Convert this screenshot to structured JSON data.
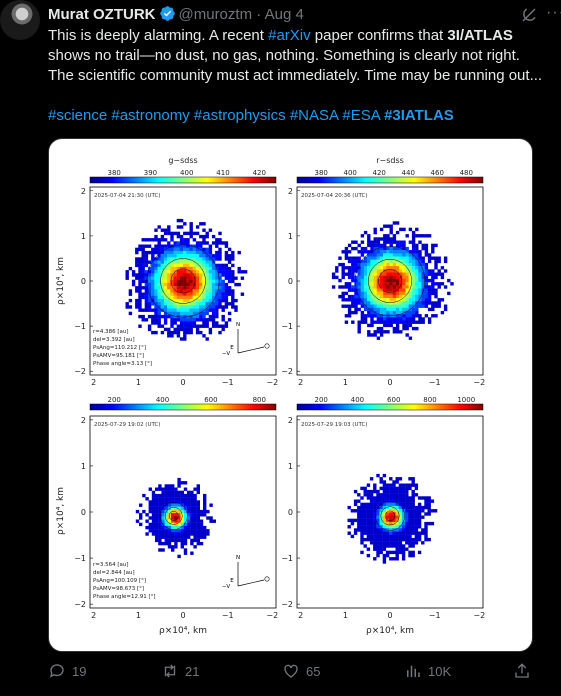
{
  "author": {
    "name": "Murat OZTURK",
    "handle": "@muroztm",
    "separator": "·",
    "date": "Aug 4"
  },
  "tweet": {
    "line1_pre": "This is deeply alarming. A recent ",
    "line1_tag": "#arXiv",
    "line1_post": " paper confirms that ",
    "line1_bold": "3I/ATLAS",
    "line2": "shows no trail—no dust, no gas, nothing.  Something is clearly not right.",
    "line3": "The scientific community must act  immediately. Time may be running out...",
    "hashtags": [
      "#science",
      "#astronomy",
      "#astrophysics",
      "#NASA",
      "#ESA",
      "#3IATLAS"
    ]
  },
  "figure": {
    "panels": [
      {
        "filter": "g−sdss",
        "colorbar_ticks": [
          "380",
          "390",
          "400",
          "410",
          "420"
        ],
        "timestamp": "2025-07-04 21:30 (UTC)",
        "info": [
          "r=4.386 [au]",
          "del=3.392 [au]",
          "PsAng=110.212 [°]",
          "PsAMV=95.181 [°]",
          "Phase angle=3.13 [°]"
        ]
      },
      {
        "filter": "r−sdss",
        "colorbar_ticks": [
          "380",
          "400",
          "420",
          "440",
          "460",
          "480"
        ],
        "timestamp": "2025-07-04 20:36 (UTC)",
        "info": []
      },
      {
        "filter": "",
        "colorbar_ticks": [
          "200",
          "400",
          "600",
          "800"
        ],
        "timestamp": "2025-07-29 19:02 (UTC)",
        "info": [
          "r=3.564 [au]",
          "del=2.844 [au]",
          "PsAng=100.109 [°]",
          "PsAMV=98.673 [°]",
          "Phase angle=12.91 [°]"
        ]
      },
      {
        "filter": "",
        "colorbar_ticks": [
          "200",
          "400",
          "600",
          "800",
          "1000"
        ],
        "timestamp": "2025-07-29 19:03 (UTC)",
        "info": []
      }
    ],
    "axis_label_y": "ρ×10⁴, km",
    "axis_label_x": "ρ×10⁴, km",
    "y_ticks": [
      "2",
      "1",
      "0",
      "−1",
      "−2"
    ],
    "x_ticks": [
      "2",
      "1",
      "0",
      "−1",
      "−2"
    ],
    "compass": {
      "north": "N",
      "east": "E",
      "velocity": "−V"
    }
  },
  "actions": {
    "replies": "19",
    "reposts": "21",
    "likes": "65",
    "views": "10K"
  },
  "colors": {
    "link": "#1d9bf0",
    "muted": "#71767b",
    "background": "#000000",
    "text": "#e7e9ea"
  }
}
